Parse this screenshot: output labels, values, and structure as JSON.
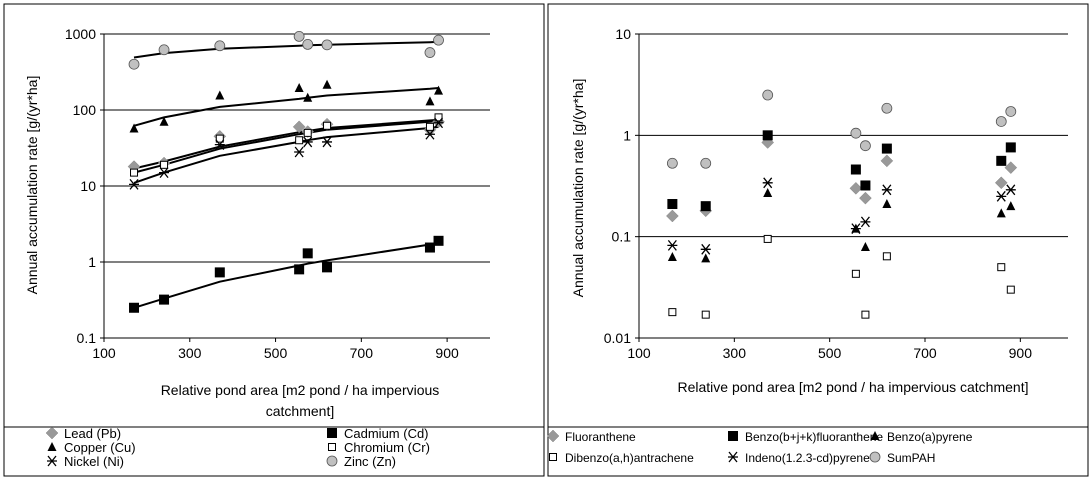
{
  "chart_data": [
    {
      "type": "scatter",
      "title": "",
      "xlabel_lines": [
        "Relative pond area [m2 pond / ha impervious",
        "catchment]"
      ],
      "ylabel": "Annual accumulation rate [g/(yr*ha]",
      "xlim": [
        100,
        1000
      ],
      "ylim": [
        0.1,
        1000
      ],
      "yscale": "log",
      "x_ticks": [
        "100",
        "300",
        "500",
        "700",
        "900"
      ],
      "y_ticks": [
        "0.1",
        "1",
        "10",
        "100",
        "1000"
      ],
      "grid": "horizontal",
      "legend_position": "bottom",
      "series": [
        {
          "name": "Lead (Pb)",
          "marker": "diamond-gray",
          "x": [
            170,
            240,
            370,
            555,
            575,
            620,
            860,
            880
          ],
          "y": [
            18,
            20,
            45,
            60,
            52,
            65,
            55,
            70
          ],
          "trend": [
            17,
            21,
            33,
            51,
            53,
            58,
            73,
            74
          ]
        },
        {
          "name": "Cadmium (Cd)",
          "marker": "square-black",
          "x": [
            170,
            240,
            370,
            555,
            575,
            620,
            860,
            880
          ],
          "y": [
            0.25,
            0.32,
            0.73,
            0.8,
            1.3,
            0.85,
            1.55,
            1.9
          ],
          "trend": [
            0.25,
            0.33,
            0.55,
            0.9,
            0.95,
            1.05,
            1.7,
            1.75
          ]
        },
        {
          "name": "Copper (Cu)",
          "marker": "triangle-black",
          "x": [
            170,
            240,
            370,
            555,
            575,
            620,
            860,
            880
          ],
          "y": [
            57,
            70,
            155,
            195,
            145,
            215,
            130,
            180
          ],
          "trend": [
            62,
            80,
            110,
            140,
            145,
            155,
            190,
            195
          ]
        },
        {
          "name": "Chromium (Cr)",
          "marker": "square-open",
          "x": [
            170,
            240,
            370,
            555,
            575,
            620,
            860,
            880
          ],
          "y": [
            15,
            19,
            42,
            40,
            50,
            62,
            60,
            80
          ],
          "trend": [
            15,
            19,
            31,
            48,
            50,
            55,
            70,
            72
          ]
        },
        {
          "name": "Nickel (Ni)",
          "marker": "star",
          "x": [
            170,
            240,
            370,
            555,
            575,
            620,
            860,
            880
          ],
          "y": [
            10.5,
            15,
            35,
            28,
            38,
            38,
            48,
            68
          ],
          "trend": [
            11,
            15,
            25,
            38,
            40,
            44,
            58,
            60
          ]
        },
        {
          "name": "Zinc (Zn)",
          "marker": "circle-gray",
          "x": [
            170,
            240,
            370,
            555,
            575,
            620,
            860,
            880
          ],
          "y": [
            400,
            620,
            700,
            930,
            730,
            720,
            570,
            830
          ],
          "trend": [
            490,
            560,
            640,
            700,
            710,
            720,
            780,
            790
          ]
        }
      ]
    },
    {
      "type": "scatter",
      "title": "",
      "xlabel_lines": [
        "Relative pond area [m2 pond / ha impervious catchment]"
      ],
      "ylabel": "Annual accumulation rate [g/(yr*ha]",
      "xlim": [
        100,
        1000
      ],
      "ylim": [
        0.01,
        10
      ],
      "yscale": "log",
      "x_ticks": [
        "100",
        "300",
        "500",
        "700",
        "900"
      ],
      "y_ticks": [
        "0.01",
        "0.1",
        "1",
        "10"
      ],
      "grid": "horizontal",
      "legend_position": "bottom",
      "series": [
        {
          "name": "Fluoranthene",
          "marker": "diamond-gray",
          "x": [
            170,
            240,
            370,
            555,
            575,
            620,
            860,
            880
          ],
          "y": [
            0.16,
            0.18,
            0.85,
            0.3,
            0.24,
            0.56,
            0.34,
            0.48
          ]
        },
        {
          "name": "Benzo(b+j+k)fluoranthene",
          "marker": "square-black",
          "x": [
            170,
            240,
            370,
            555,
            575,
            620,
            860,
            880
          ],
          "y": [
            0.21,
            0.2,
            1.0,
            0.46,
            0.32,
            0.74,
            0.56,
            0.76
          ]
        },
        {
          "name": "Benzo(a)pyrene",
          "marker": "triangle-black",
          "x": [
            170,
            240,
            370,
            555,
            575,
            620,
            860,
            880
          ],
          "y": [
            0.063,
            0.061,
            0.27,
            0.12,
            0.079,
            0.21,
            0.17,
            0.2
          ]
        },
        {
          "name": "Dibenzo(a,h)antrachene",
          "marker": "square-open",
          "x": [
            170,
            240,
            370,
            555,
            575,
            620,
            860,
            880
          ],
          "y": [
            0.018,
            0.017,
            0.095,
            0.043,
            0.017,
            0.064,
            0.05,
            0.03
          ]
        },
        {
          "name": "Indeno(1.2.3-cd)pyrene",
          "marker": "star",
          "x": [
            170,
            240,
            370,
            555,
            575,
            620,
            860,
            880
          ],
          "y": [
            0.082,
            0.075,
            0.34,
            0.12,
            0.14,
            0.29,
            0.25,
            0.29
          ]
        },
        {
          "name": "SumPAH",
          "marker": "circle-gray",
          "x": [
            170,
            240,
            370,
            555,
            575,
            620,
            860,
            880
          ],
          "y": [
            0.53,
            0.53,
            2.5,
            1.05,
            0.79,
            1.85,
            1.37,
            1.72
          ]
        }
      ]
    }
  ]
}
